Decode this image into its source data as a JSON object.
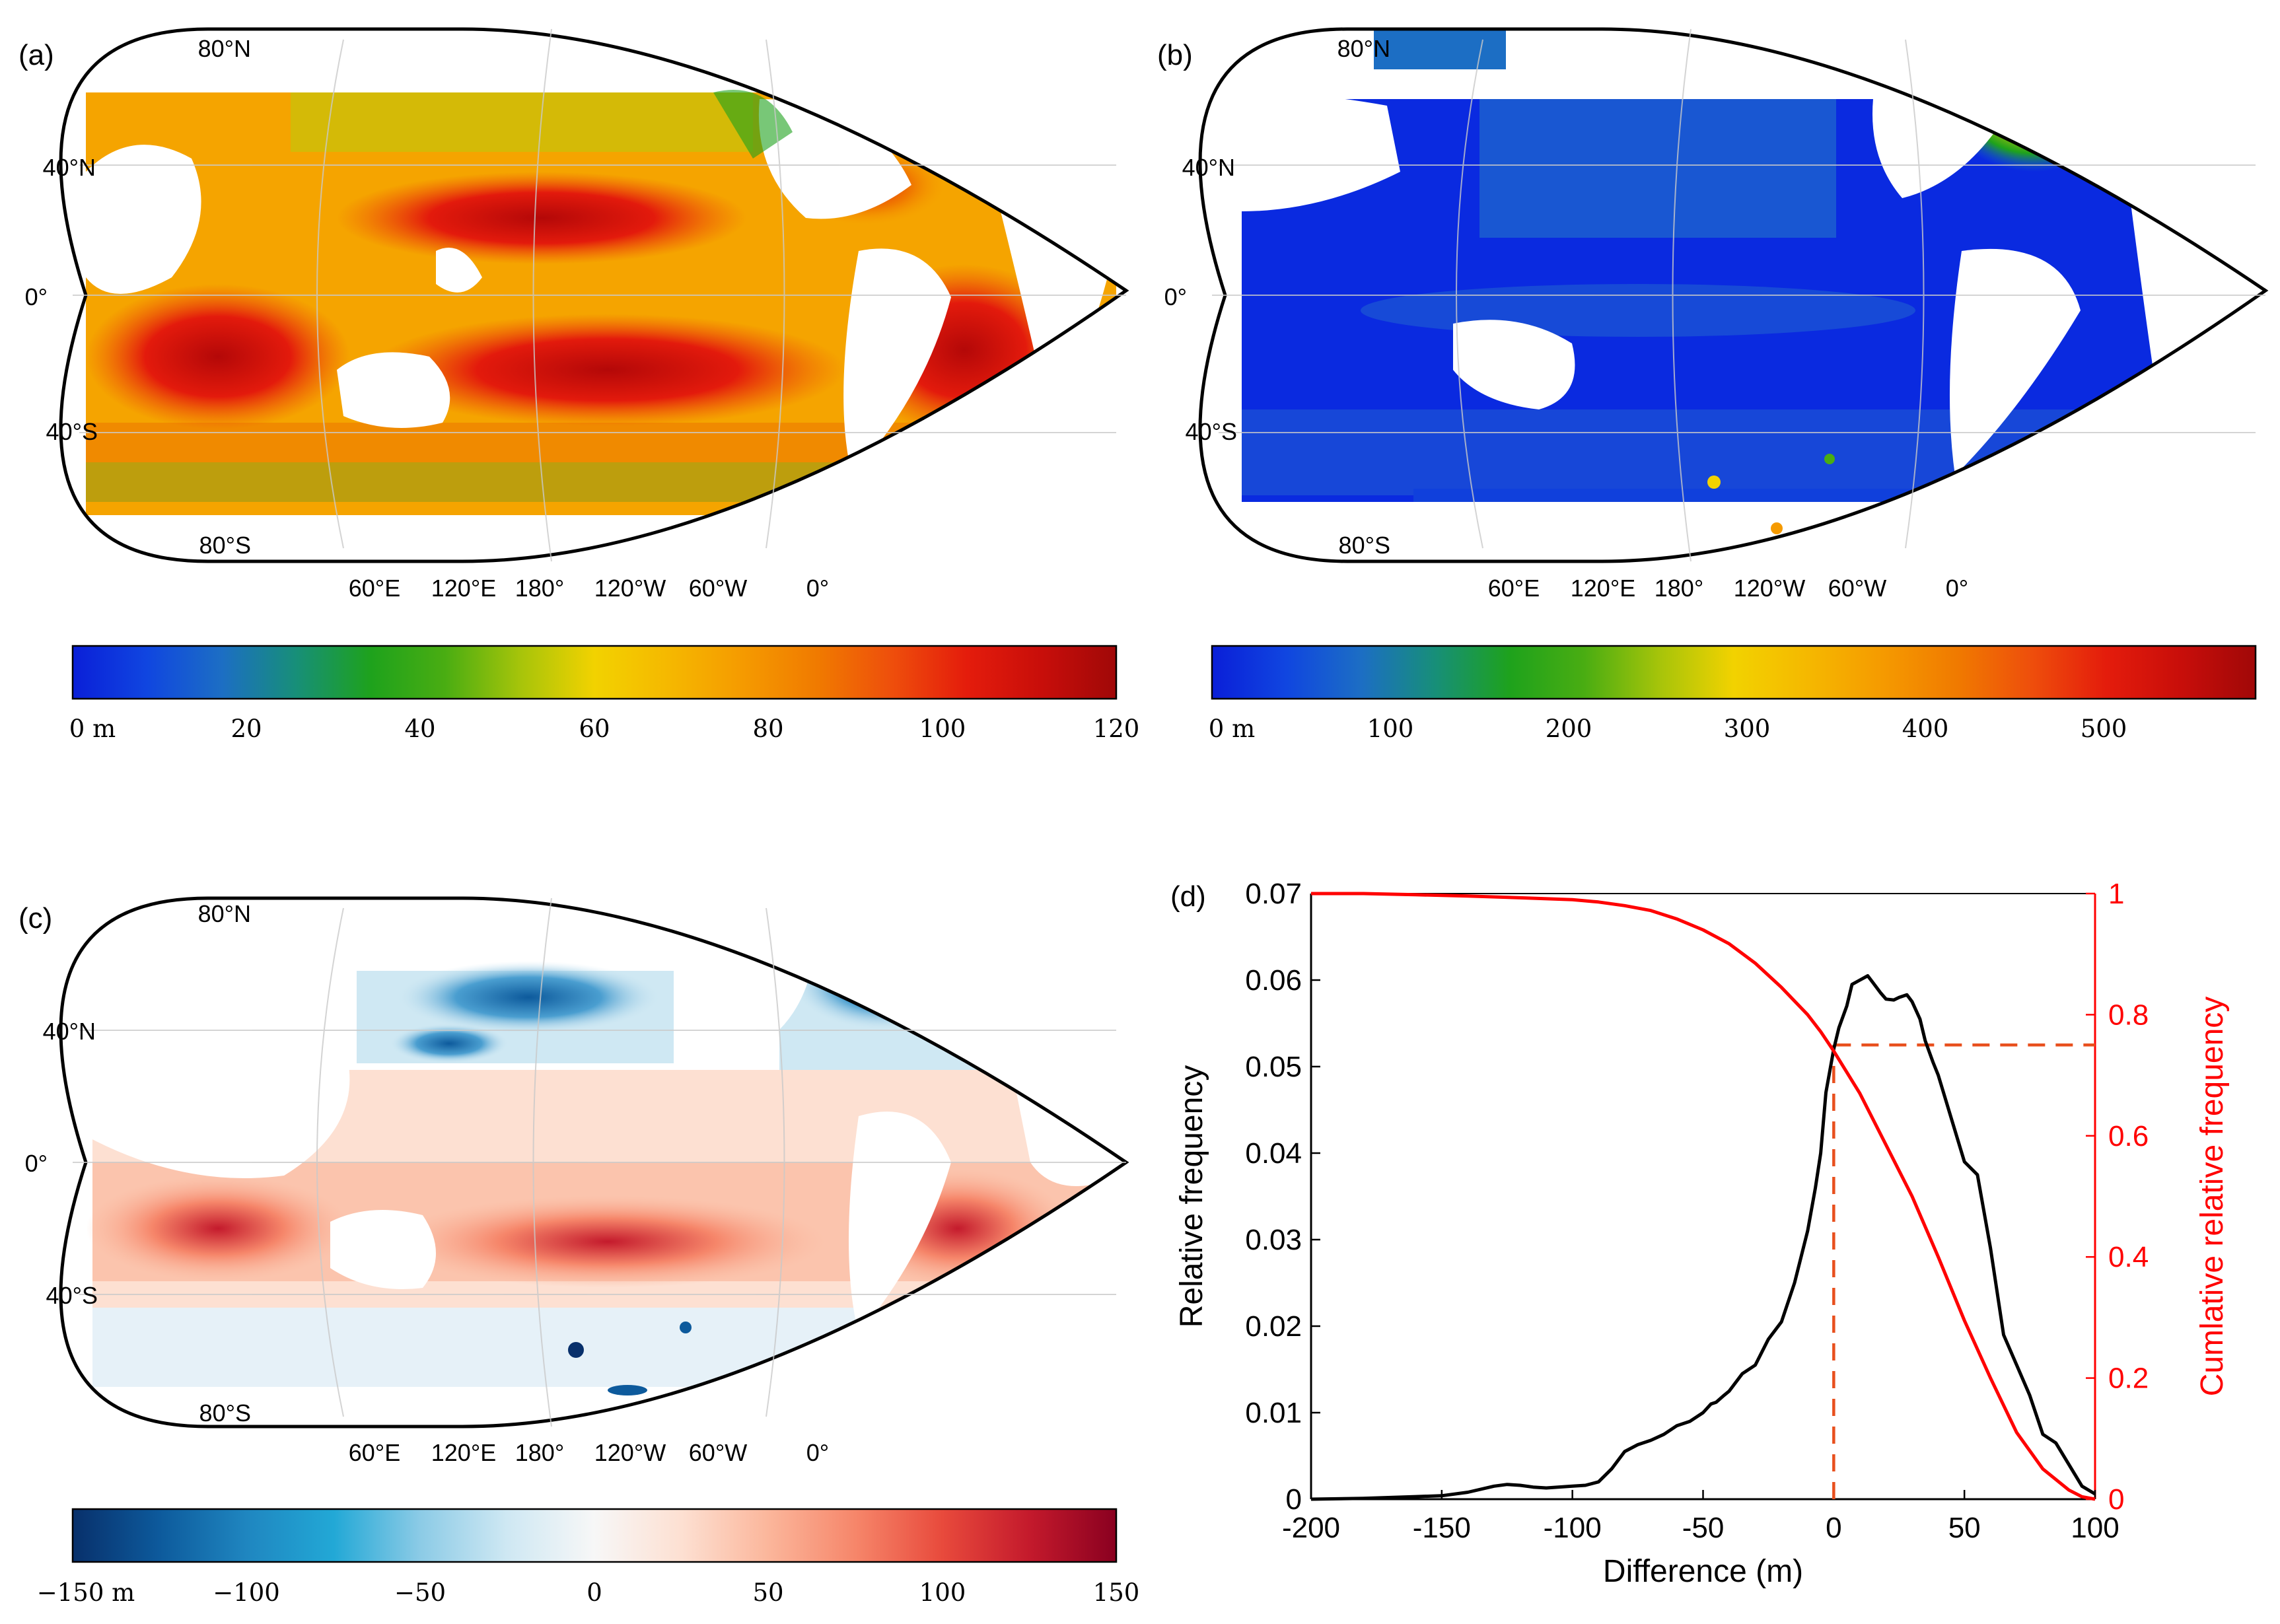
{
  "panels": {
    "a": {
      "label": "(a)",
      "lat_labels": [
        "80°N",
        "40°N",
        "0°",
        "40°S",
        "80°S"
      ],
      "lon_labels": [
        "60°E",
        "120°E",
        "180°",
        "120°W",
        "60°W",
        "0°"
      ],
      "colorbar": {
        "ticks": [
          "0 m",
          "20",
          "40",
          "60",
          "80",
          "100",
          "120"
        ],
        "range": [
          0,
          120
        ],
        "colors": [
          "#0a1fd8",
          "#1046e0",
          "#1c6ec4",
          "#178f78",
          "#1ea21c",
          "#4aad12",
          "#a6c40a",
          "#f2d200",
          "#f5b800",
          "#f59a00",
          "#f07a00",
          "#ee4e0c",
          "#e41c0c",
          "#c80e0a",
          "#a00808"
        ]
      }
    },
    "b": {
      "label": "(b)",
      "lat_labels": [
        "80°N",
        "40°N",
        "0°",
        "40°S",
        "80°S"
      ],
      "lon_labels": [
        "60°E",
        "120°E",
        "180°",
        "120°W",
        "60°W",
        "0°"
      ],
      "colorbar": {
        "ticks": [
          "0 m",
          "100",
          "200",
          "300",
          "400",
          "500"
        ],
        "range": [
          0,
          585
        ],
        "colors": [
          "#0a1fd8",
          "#1046e0",
          "#1c6ec4",
          "#178f78",
          "#1ea21c",
          "#4aad12",
          "#a6c40a",
          "#f2d200",
          "#f5b800",
          "#f59a00",
          "#f07a00",
          "#ee4e0c",
          "#e41c0c",
          "#c80e0a",
          "#a00808"
        ]
      }
    },
    "c": {
      "label": "(c)",
      "lat_labels": [
        "80°N",
        "40°N",
        "0°",
        "40°S",
        "80°S"
      ],
      "lon_labels": [
        "60°E",
        "120°E",
        "180°",
        "120°W",
        "60°W",
        "0°"
      ],
      "colorbar": {
        "ticks": [
          "−150 m",
          "−100",
          "−50",
          "0",
          "50",
          "100",
          "150"
        ],
        "range": [
          -150,
          150
        ],
        "colors": [
          "#08306b",
          "#0d5a9c",
          "#1f86c0",
          "#22a8d6",
          "#8ccbe6",
          "#cfe8f3",
          "#f7f7f7",
          "#fde0d2",
          "#fbb69b",
          "#f6866a",
          "#e84a3c",
          "#c41a2c",
          "#8a0020"
        ]
      }
    }
  },
  "chart_data": {
    "type": "line",
    "label": "(d)",
    "xlabel": "Difference (m)",
    "ylabel": "Relative frequency",
    "y2label": "Cumlative relative frequency",
    "xlim": [
      -200,
      100
    ],
    "ylim": [
      0,
      0.07
    ],
    "y2lim": [
      0,
      1
    ],
    "xticks": [
      "-200",
      "-150",
      "-100",
      "-50",
      "0",
      "50",
      "100"
    ],
    "yticks": [
      "0",
      "0.01",
      "0.02",
      "0.03",
      "0.04",
      "0.05",
      "0.06",
      "0.07"
    ],
    "y2ticks": [
      "0",
      "0.2",
      "0.4",
      "0.6",
      "0.8",
      "1"
    ],
    "series": [
      {
        "name": "Relative frequency",
        "axis": "left",
        "color": "#000000",
        "x": [
          -200,
          -180,
          -160,
          -150,
          -140,
          -130,
          -125,
          -120,
          -115,
          -110,
          -100,
          -95,
          -90,
          -85,
          -80,
          -75,
          -70,
          -65,
          -60,
          -55,
          -50,
          -47,
          -45,
          -42,
          -40,
          -35,
          -30,
          -25,
          -20,
          -15,
          -10,
          -7,
          -5,
          -3,
          0,
          2,
          5,
          7,
          10,
          13,
          15,
          18,
          20,
          23,
          25,
          28,
          30,
          33,
          35,
          38,
          40,
          45,
          50,
          55,
          60,
          65,
          70,
          75,
          80,
          85,
          90,
          95,
          100
        ],
        "y": [
          0,
          0.0001,
          0.0003,
          0.0004,
          0.0008,
          0.0015,
          0.0017,
          0.0016,
          0.0014,
          0.0013,
          0.0015,
          0.0016,
          0.002,
          0.0035,
          0.0055,
          0.0063,
          0.0068,
          0.0075,
          0.0085,
          0.009,
          0.01,
          0.011,
          0.0112,
          0.012,
          0.0125,
          0.0145,
          0.0155,
          0.0185,
          0.0205,
          0.025,
          0.031,
          0.036,
          0.04,
          0.047,
          0.052,
          0.0545,
          0.057,
          0.0595,
          0.06,
          0.0605,
          0.0597,
          0.0585,
          0.0578,
          0.0577,
          0.058,
          0.0583,
          0.0575,
          0.0555,
          0.053,
          0.0505,
          0.049,
          0.044,
          0.039,
          0.0375,
          0.029,
          0.019,
          0.0155,
          0.012,
          0.0075,
          0.0065,
          0.004,
          0.0015,
          0.0006
        ]
      },
      {
        "name": "Cumlative relative frequency",
        "axis": "right",
        "color": "#ff0000",
        "x": [
          -200,
          -180,
          -160,
          -140,
          -120,
          -100,
          -90,
          -80,
          -70,
          -60,
          -50,
          -40,
          -30,
          -20,
          -10,
          -5,
          0,
          10,
          20,
          30,
          40,
          50,
          60,
          70,
          80,
          90,
          95,
          100
        ],
        "y": [
          1,
          1,
          0.998,
          0.996,
          0.993,
          0.99,
          0.986,
          0.98,
          0.972,
          0.958,
          0.94,
          0.917,
          0.885,
          0.845,
          0.8,
          0.772,
          0.74,
          0.67,
          0.585,
          0.5,
          0.4,
          0.295,
          0.2,
          0.11,
          0.05,
          0.015,
          0.004,
          0
        ]
      }
    ],
    "reference_lines": [
      {
        "orientation": "vertical",
        "x": 0,
        "y2_top": 0.75,
        "color": "#e8501e",
        "style": "dashed"
      },
      {
        "orientation": "horizontal",
        "y2": 0.75,
        "x_from": 0,
        "x_to": 100,
        "color": "#e8501e",
        "style": "dashed"
      }
    ]
  }
}
